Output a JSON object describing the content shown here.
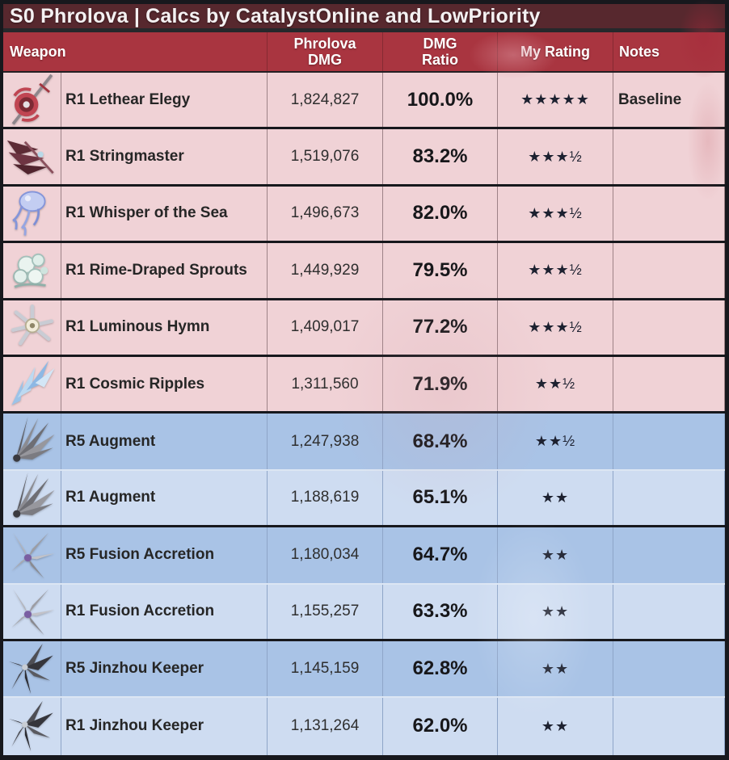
{
  "title": "S0 Phrolova | Calcs by CatalystOnline and LowPriority",
  "columns": {
    "weapon": "Weapon",
    "phrolova_dmg": "Phrolova\nDMG",
    "dmg_ratio": "DMG\nRatio",
    "my_rating": "My Rating",
    "notes": "Notes"
  },
  "rows": [
    {
      "icon": "lethear-elegy-icon",
      "name": "R1 Lethear Elegy",
      "dmg": "1,824,827",
      "ratio": "100.0%",
      "rating": "★★★★★",
      "note": "Baseline",
      "tone": "pink",
      "sep": "dark"
    },
    {
      "icon": "stringmaster-icon",
      "name": "R1 Stringmaster",
      "dmg": "1,519,076",
      "ratio": "83.2%",
      "rating": "★★★½",
      "note": "",
      "tone": "pink",
      "sep": "dark"
    },
    {
      "icon": "whisper-of-the-sea-icon",
      "name": "R1 Whisper of the Sea",
      "dmg": "1,496,673",
      "ratio": "82.0%",
      "rating": "★★★½",
      "note": "",
      "tone": "pink",
      "sep": "dark"
    },
    {
      "icon": "rime-draped-sprouts-icon",
      "name": "R1 Rime-Draped Sprouts",
      "dmg": "1,449,929",
      "ratio": "79.5%",
      "rating": "★★★½",
      "note": "",
      "tone": "pink",
      "sep": "dark"
    },
    {
      "icon": "luminous-hymn-icon",
      "name": "R1 Luminous Hymn",
      "dmg": "1,409,017",
      "ratio": "77.2%",
      "rating": "★★★½",
      "note": "",
      "tone": "pink",
      "sep": "dark"
    },
    {
      "icon": "cosmic-ripples-icon",
      "name": "R1 Cosmic Ripples",
      "dmg": "1,311,560",
      "ratio": "71.9%",
      "rating": "★★½",
      "note": "",
      "tone": "pink",
      "sep": "dark"
    },
    {
      "icon": "augment-icon",
      "name": "R5 Augment",
      "dmg": "1,247,938",
      "ratio": "68.4%",
      "rating": "★★½",
      "note": "",
      "tone": "blue-r5",
      "sep": "light"
    },
    {
      "icon": "augment-icon",
      "name": "R1 Augment",
      "dmg": "1,188,619",
      "ratio": "65.1%",
      "rating": "★★",
      "note": "",
      "tone": "blue-r1",
      "sep": "dark"
    },
    {
      "icon": "fusion-accretion-icon",
      "name": "R5 Fusion Accretion",
      "dmg": "1,180,034",
      "ratio": "64.7%",
      "rating": "★★",
      "note": "",
      "tone": "blue-r5",
      "sep": "light"
    },
    {
      "icon": "fusion-accretion-icon",
      "name": "R1 Fusion Accretion",
      "dmg": "1,155,257",
      "ratio": "63.3%",
      "rating": "★★",
      "note": "",
      "tone": "blue-r1",
      "sep": "dark"
    },
    {
      "icon": "jinzhou-keeper-icon",
      "name": "R5 Jinzhou Keeper",
      "dmg": "1,145,159",
      "ratio": "62.8%",
      "rating": "★★",
      "note": "",
      "tone": "blue-r5",
      "sep": "light"
    },
    {
      "icon": "jinzhou-keeper-icon",
      "name": "R1 Jinzhou Keeper",
      "dmg": "1,131,264",
      "ratio": "62.0%",
      "rating": "★★",
      "note": "",
      "tone": "blue-r1",
      "sep": "none"
    }
  ],
  "colors": {
    "title_bg": "#57282e",
    "header_bg": "#a93540",
    "pink_row": "#f0d2d6",
    "blue_r5_row": "#a9c3e6",
    "blue_r1_row": "#cedcf1",
    "dark_border": "#17181d",
    "star_color": "#1d2130"
  },
  "chart_data": {
    "type": "table",
    "title": "S0 Phrolova | Calcs by CatalystOnline and LowPriority",
    "columns": [
      "Weapon",
      "Phrolova DMG",
      "DMG Ratio",
      "My Rating",
      "Notes"
    ],
    "rows": [
      [
        "R1 Lethear Elegy",
        1824827,
        "100.0%",
        5.0,
        "Baseline"
      ],
      [
        "R1 Stringmaster",
        1519076,
        "83.2%",
        3.5,
        ""
      ],
      [
        "R1 Whisper of the Sea",
        1496673,
        "82.0%",
        3.5,
        ""
      ],
      [
        "R1 Rime-Draped Sprouts",
        1449929,
        "79.5%",
        3.5,
        ""
      ],
      [
        "R1 Luminous Hymn",
        1409017,
        "77.2%",
        3.5,
        ""
      ],
      [
        "R1 Cosmic Ripples",
        1311560,
        "71.9%",
        2.5,
        ""
      ],
      [
        "R5 Augment",
        1247938,
        "68.4%",
        2.5,
        ""
      ],
      [
        "R1 Augment",
        1188619,
        "65.1%",
        2.0,
        ""
      ],
      [
        "R5 Fusion Accretion",
        1180034,
        "64.7%",
        2.0,
        ""
      ],
      [
        "R1 Fusion Accretion",
        1155257,
        "63.3%",
        2.0,
        ""
      ],
      [
        "R5 Jinzhou Keeper",
        1145159,
        "62.8%",
        2.0,
        ""
      ],
      [
        "R1 Jinzhou Keeper",
        1131264,
        "62.0%",
        2.0,
        ""
      ]
    ],
    "layout_hints": {
      "row_groups": [
        "rows 1-6 pink background",
        "rows 7-12 blue background, R5 rows darker than R1 rows"
      ]
    }
  }
}
